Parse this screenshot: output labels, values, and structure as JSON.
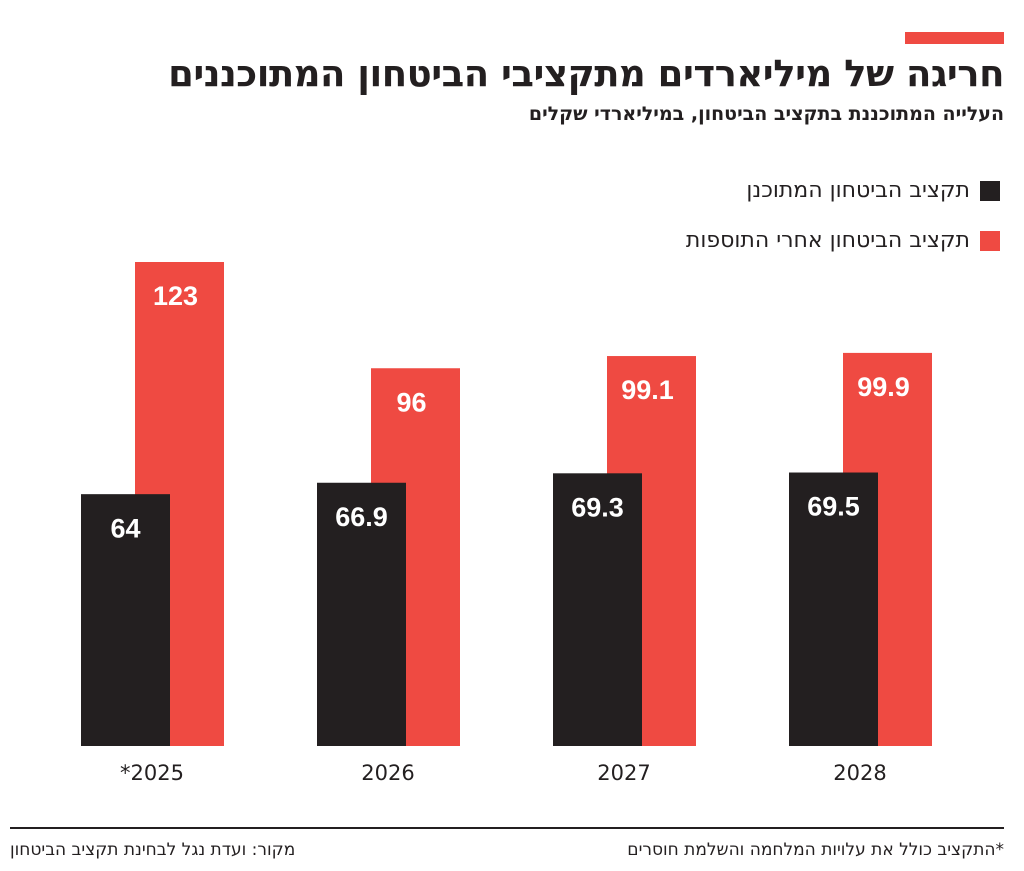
{
  "chart_data": {
    "type": "bar",
    "title": "חריגה של מיליארדים מתקציבי הביטחון המתוכננים",
    "subtitle": "העלייה המתוכננת בתקציב הביטחון, במיליארדי שקלים",
    "categories": [
      "*2025",
      "2026",
      "2027",
      "2028"
    ],
    "series": [
      {
        "name": "תקציב הביטחון המתוכנן",
        "color": "#231f20",
        "values": [
          64,
          66.9,
          69.3,
          69.5
        ]
      },
      {
        "name": "תקציב הביטחון אחרי התוספות",
        "color": "#ef4a42",
        "values": [
          123,
          96,
          99.1,
          99.9
        ]
      }
    ],
    "note": "*התקציב כולל את עלויות המלחמה והשלמת חוסרים",
    "source": "מקור: ועדת נגל לבחינת תקציב הביטחון"
  }
}
